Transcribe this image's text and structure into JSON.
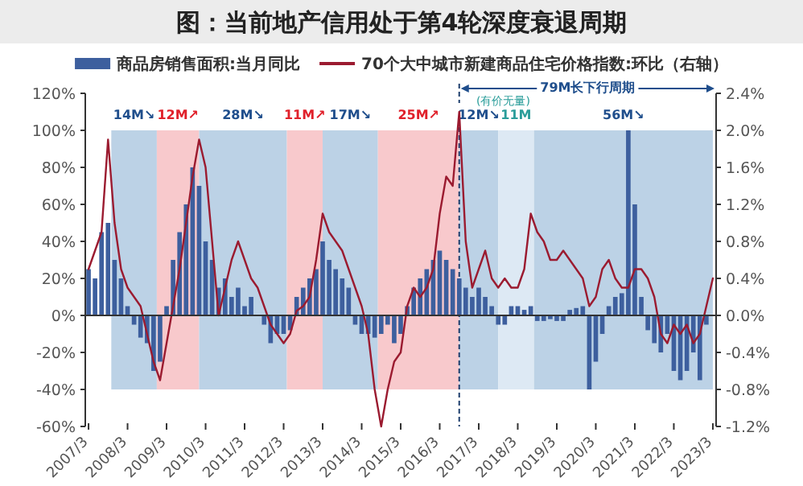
{
  "chart_data": {
    "type": "bar",
    "title": "图：当前地产信用处于第4轮深度衰退周期",
    "x": [
      "2007-03",
      "2007-05",
      "2007-07",
      "2007-09",
      "2007-11",
      "2008-01",
      "2008-03",
      "2008-05",
      "2008-07",
      "2008-09",
      "2008-11",
      "2009-01",
      "2009-03",
      "2009-05",
      "2009-07",
      "2009-09",
      "2009-11",
      "2010-01",
      "2010-03",
      "2010-05",
      "2010-07",
      "2010-09",
      "2010-11",
      "2011-01",
      "2011-03",
      "2011-05",
      "2011-07",
      "2011-09",
      "2011-11",
      "2012-01",
      "2012-03",
      "2012-05",
      "2012-07",
      "2012-09",
      "2012-11",
      "2013-01",
      "2013-03",
      "2013-05",
      "2013-07",
      "2013-09",
      "2013-11",
      "2014-01",
      "2014-03",
      "2014-05",
      "2014-07",
      "2014-09",
      "2014-11",
      "2015-01",
      "2015-03",
      "2015-05",
      "2015-07",
      "2015-09",
      "2015-11",
      "2016-01",
      "2016-03",
      "2016-05",
      "2016-07",
      "2016-09",
      "2016-11",
      "2017-01",
      "2017-03",
      "2017-05",
      "2017-07",
      "2017-09",
      "2017-11",
      "2018-01",
      "2018-03",
      "2018-05",
      "2018-07",
      "2018-09",
      "2018-11",
      "2019-01",
      "2019-03",
      "2019-05",
      "2019-07",
      "2019-09",
      "2019-11",
      "2020-01",
      "2020-03",
      "2020-05",
      "2020-07",
      "2020-09",
      "2020-11",
      "2021-01",
      "2021-03",
      "2021-05",
      "2021-07",
      "2021-09",
      "2021-11",
      "2022-01",
      "2022-03",
      "2022-05",
      "2022-07",
      "2022-09",
      "2022-11",
      "2023-01",
      "2023-03"
    ],
    "series": [
      {
        "name": "商品房销售面积:当月同比",
        "color": "#3d5f9e",
        "values": [
          25,
          20,
          45,
          50,
          30,
          20,
          5,
          -5,
          -12,
          -15,
          -30,
          -25,
          5,
          30,
          45,
          60,
          80,
          70,
          40,
          30,
          15,
          20,
          10,
          15,
          5,
          10,
          0,
          -5,
          -15,
          -10,
          -10,
          -8,
          10,
          15,
          20,
          25,
          40,
          30,
          25,
          20,
          15,
          -5,
          -10,
          -10,
          -12,
          -10,
          -5,
          -15,
          -10,
          5,
          15,
          20,
          25,
          30,
          35,
          30,
          25,
          20,
          15,
          10,
          15,
          10,
          5,
          -5,
          -5,
          5,
          5,
          3,
          5,
          -3,
          -3,
          -2,
          -3,
          -3,
          3,
          4,
          5,
          -40,
          -25,
          -10,
          5,
          10,
          12,
          100,
          60,
          10,
          -8,
          -15,
          -20,
          -10,
          -30,
          -35,
          -30,
          -20,
          -35,
          -5,
          0
        ]
      },
      {
        "name": "70个大中城市新建商品住宅价格指数:环比（右轴）",
        "type": "line",
        "axis": "y2",
        "color": "#9b1b30",
        "values": [
          0.5,
          0.7,
          0.9,
          1.9,
          1.0,
          0.5,
          0.3,
          0.2,
          0.1,
          -0.2,
          -0.5,
          -0.7,
          -0.3,
          0.1,
          0.5,
          1.0,
          1.5,
          1.9,
          1.6,
          0.8,
          0,
          0.3,
          0.6,
          0.8,
          0.6,
          0.4,
          0.3,
          0.1,
          -0.1,
          -0.2,
          -0.3,
          -0.2,
          0.05,
          0.1,
          0.2,
          0.6,
          1.1,
          0.9,
          0.8,
          0.7,
          0.5,
          0.3,
          0.1,
          -0.2,
          -0.8,
          -1.2,
          -0.8,
          -0.5,
          -0.4,
          0.1,
          0.3,
          0.2,
          0.3,
          0.5,
          1.1,
          1.5,
          1.4,
          2.2,
          0.8,
          0.3,
          0.5,
          0.7,
          0.4,
          0.3,
          0.4,
          0.3,
          0.3,
          0.5,
          1.1,
          0.9,
          0.8,
          0.6,
          0.6,
          0.7,
          0.6,
          0.5,
          0.4,
          0.1,
          0.2,
          0.5,
          0.6,
          0.4,
          0.3,
          0.3,
          0.5,
          0.5,
          0.4,
          0.2,
          -0.2,
          -0.3,
          -0.1,
          -0.2,
          -0.1,
          -0.3,
          -0.2,
          0.1,
          0.4
        ]
      }
    ],
    "xlim": [
      "2007-02",
      "2023-04"
    ],
    "xticks": [
      {
        "value": "2007-03",
        "label": "2007/3"
      },
      {
        "value": "2008-03",
        "label": "2008/3"
      },
      {
        "value": "2009-03",
        "label": "2009/3"
      },
      {
        "value": "2010-03",
        "label": "2010/3"
      },
      {
        "value": "2011-03",
        "label": "2011/3"
      },
      {
        "value": "2012-03",
        "label": "2012/3"
      },
      {
        "value": "2013-03",
        "label": "2013/3"
      },
      {
        "value": "2014-03",
        "label": "2014/3"
      },
      {
        "value": "2015-03",
        "label": "2015/3"
      },
      {
        "value": "2016-03",
        "label": "2016/3"
      },
      {
        "value": "2017-03",
        "label": "2017/3"
      },
      {
        "value": "2018-03",
        "label": "2018/3"
      },
      {
        "value": "2019-03",
        "label": "2019/3"
      },
      {
        "value": "2020-03",
        "label": "2020/3"
      },
      {
        "value": "2021-03",
        "label": "2021/3"
      },
      {
        "value": "2022-03",
        "label": "2022/3"
      },
      {
        "value": "2023-03",
        "label": "2023/3"
      }
    ],
    "ylim": [
      -60,
      120
    ],
    "yticks": [
      {
        "value": -60,
        "label": "-60%"
      },
      {
        "value": -40,
        "label": "-40%"
      },
      {
        "value": -20,
        "label": "-20%"
      },
      {
        "value": 0,
        "label": "0%"
      },
      {
        "value": 20,
        "label": "20%"
      },
      {
        "value": 40,
        "label": "40%"
      },
      {
        "value": 60,
        "label": "60%"
      },
      {
        "value": 80,
        "label": "80%"
      },
      {
        "value": 100,
        "label": "100%"
      },
      {
        "value": 120,
        "label": "120%"
      }
    ],
    "y2lim": [
      -1.2,
      2.4
    ],
    "y2ticks": [
      {
        "value": -1.2,
        "label": "-1.2%"
      },
      {
        "value": -0.8,
        "label": "-0.8%"
      },
      {
        "value": -0.4,
        "label": "-0.4%"
      },
      {
        "value": 0,
        "label": "0.0%"
      },
      {
        "value": 0.4,
        "label": "0.4%"
      },
      {
        "value": 0.8,
        "label": "0.8%"
      },
      {
        "value": 1.2,
        "label": "1.2%"
      },
      {
        "value": 1.6,
        "label": "1.6%"
      },
      {
        "value": 2.0,
        "label": "2.0%"
      },
      {
        "value": 2.4,
        "label": "2.4%"
      }
    ],
    "bands": [
      {
        "axis": "x",
        "from": "2007-10",
        "to": "2008-12",
        "label": "14M↘",
        "color": "#bcd2e6"
      },
      {
        "axis": "x",
        "from": "2008-12",
        "to": "2010-01",
        "label": "12M↗",
        "color": "#f8c9cc"
      },
      {
        "axis": "x",
        "from": "2010-01",
        "to": "2012-04",
        "label": "28M↘",
        "color": "#bcd2e6"
      },
      {
        "axis": "x",
        "from": "2012-04",
        "to": "2013-03",
        "label": "11M↗",
        "color": "#f8c9cc"
      },
      {
        "axis": "x",
        "from": "2013-03",
        "to": "2014-08",
        "label": "17M↘",
        "color": "#bcd2e6"
      },
      {
        "axis": "x",
        "from": "2014-08",
        "to": "2016-09",
        "label": "25M↗",
        "color": "#f8c9cc"
      },
      {
        "axis": "x",
        "from": "2016-09",
        "to": "2017-09",
        "label": "12M↘",
        "color": "#bcd2e6"
      },
      {
        "axis": "x",
        "from": "2017-09",
        "to": "2018-08",
        "label": "11M",
        "color": "#dde9f4"
      },
      {
        "axis": "x",
        "from": "2018-08",
        "to": "2023-03",
        "label": "56M↘",
        "color": "#bcd2e6"
      }
    ],
    "ref_lines": [
      {
        "axis": "x",
        "value": "2016-09",
        "color": "#1f3f6e",
        "line_style": "dashed"
      }
    ],
    "annotations": [
      "79M长下行周期",
      "(有价无量)"
    ],
    "legend": "top"
  }
}
